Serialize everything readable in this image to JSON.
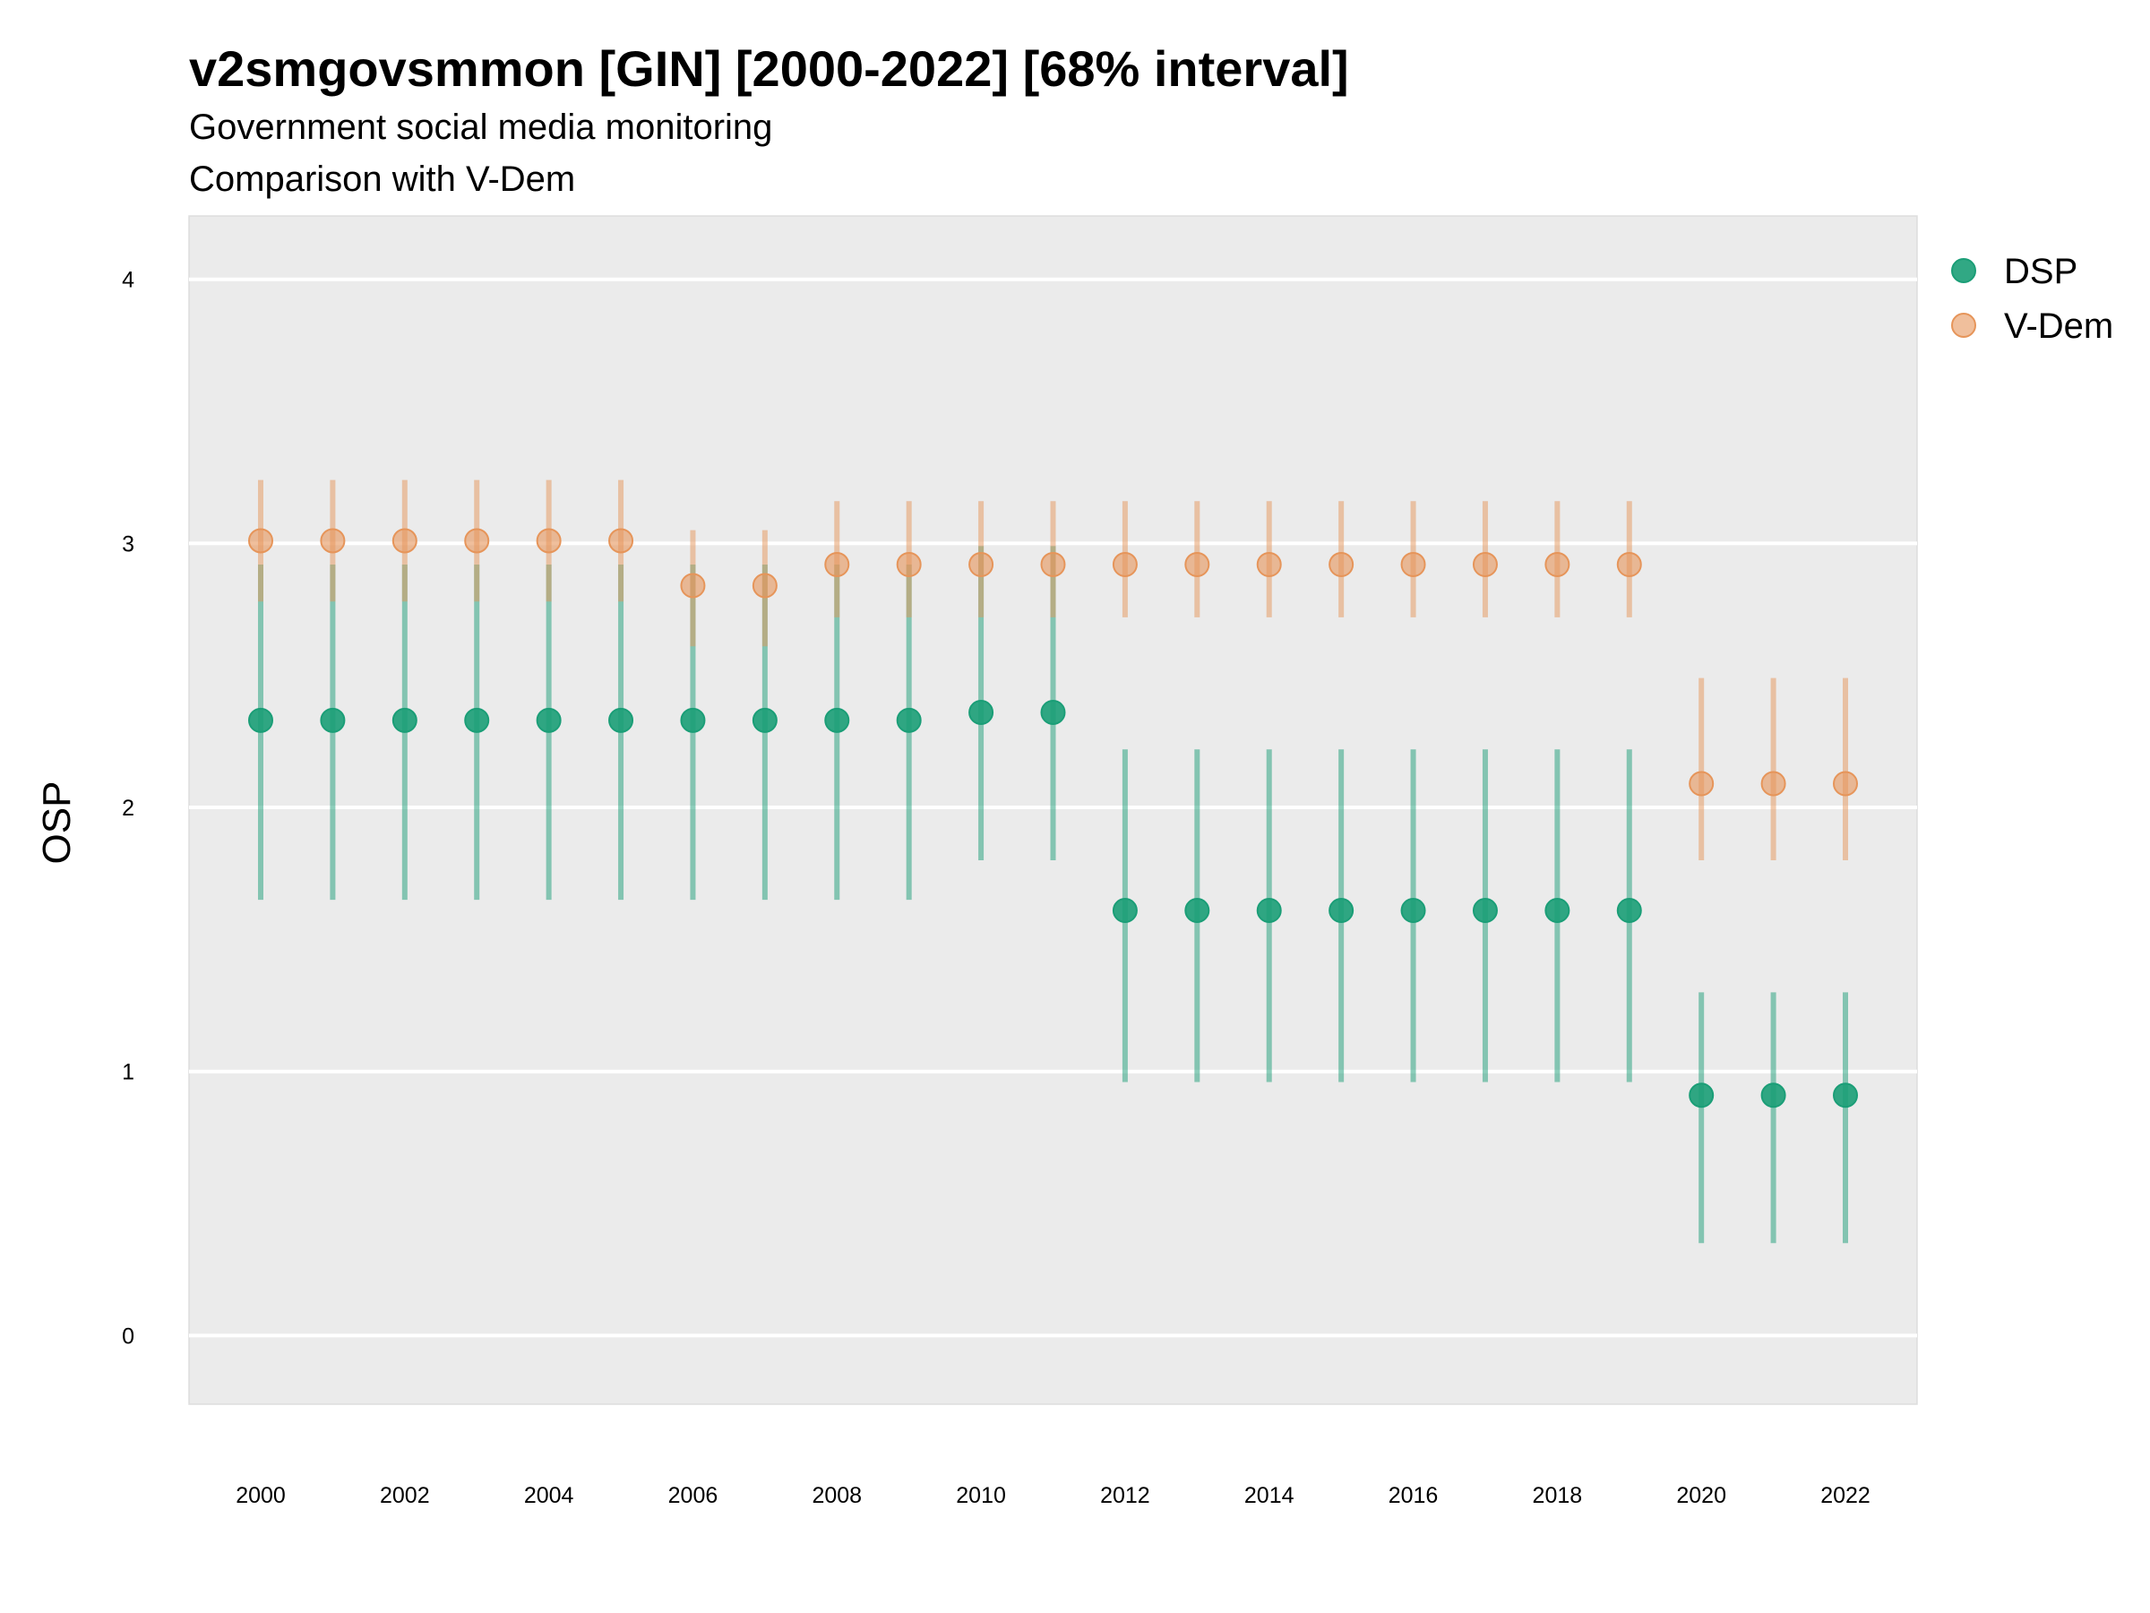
{
  "chart_data": {
    "type": "scatter",
    "title": "v2smgovsmmon [GIN] [2000-2022] [68% interval]",
    "subtitle": "Government social media monitoring",
    "caption": "Comparison with V-Dem",
    "xlabel": "",
    "ylabel": "OSP",
    "xlim": [
      1999,
      2023
    ],
    "ylim": [
      -0.26,
      4.24
    ],
    "yticks": [
      0,
      1,
      2,
      3,
      4
    ],
    "xticks": [
      2000,
      2002,
      2004,
      2006,
      2008,
      2010,
      2012,
      2014,
      2016,
      2018,
      2020,
      2022
    ],
    "grid": true,
    "legend_position": "right",
    "x": [
      2000,
      2001,
      2002,
      2003,
      2004,
      2005,
      2006,
      2007,
      2008,
      2009,
      2010,
      2011,
      2012,
      2013,
      2014,
      2015,
      2016,
      2017,
      2018,
      2019,
      2020,
      2021,
      2022
    ],
    "series": [
      {
        "name": "DSP",
        "color": "#1B9E77",
        "values": [
          2.33,
          2.33,
          2.33,
          2.33,
          2.33,
          2.33,
          2.33,
          2.33,
          2.33,
          2.33,
          2.36,
          2.36,
          1.61,
          1.61,
          1.61,
          1.61,
          1.61,
          1.61,
          1.61,
          1.61,
          0.91,
          0.91,
          0.91
        ],
        "lower": [
          1.65,
          1.65,
          1.65,
          1.65,
          1.65,
          1.65,
          1.65,
          1.65,
          1.65,
          1.65,
          1.8,
          1.8,
          0.96,
          0.96,
          0.96,
          0.96,
          0.96,
          0.96,
          0.96,
          0.96,
          0.35,
          0.35,
          0.35
        ],
        "upper": [
          2.92,
          2.92,
          2.92,
          2.92,
          2.92,
          2.92,
          2.92,
          2.92,
          2.92,
          2.92,
          2.99,
          2.99,
          2.22,
          2.22,
          2.22,
          2.22,
          2.22,
          2.22,
          2.22,
          2.22,
          1.3,
          1.3,
          1.3
        ]
      },
      {
        "name": "V-Dem",
        "color": "#E6955A",
        "values": [
          3.01,
          3.01,
          3.01,
          3.01,
          3.01,
          3.01,
          2.84,
          2.84,
          2.92,
          2.92,
          2.92,
          2.92,
          2.92,
          2.92,
          2.92,
          2.92,
          2.92,
          2.92,
          2.92,
          2.92,
          2.09,
          2.09,
          2.09
        ],
        "lower": [
          2.78,
          2.78,
          2.78,
          2.78,
          2.78,
          2.78,
          2.61,
          2.61,
          2.72,
          2.72,
          2.72,
          2.72,
          2.72,
          2.72,
          2.72,
          2.72,
          2.72,
          2.72,
          2.72,
          2.72,
          1.8,
          1.8,
          1.8
        ],
        "upper": [
          3.24,
          3.24,
          3.24,
          3.24,
          3.24,
          3.24,
          3.05,
          3.05,
          3.16,
          3.16,
          3.16,
          3.16,
          3.16,
          3.16,
          3.16,
          3.16,
          3.16,
          3.16,
          3.16,
          3.16,
          2.49,
          2.49,
          2.49
        ]
      }
    ]
  }
}
